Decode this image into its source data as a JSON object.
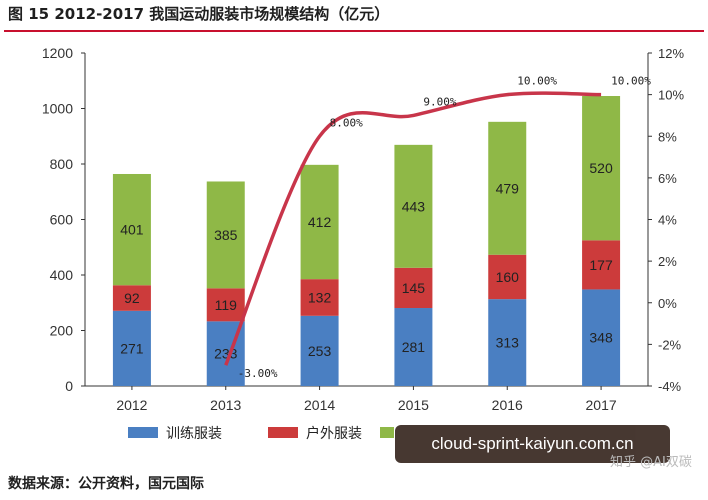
{
  "title": "图 15   2012-2017 我国运动服装市场规模结构（亿元）",
  "source": "数据来源：公开资料，国元国际",
  "watermark": "cloud-sprint-kaiyun.com.cn",
  "watermark_corner": "知乎 @AI双碳",
  "colors": {
    "training": "#4a7fc2",
    "outdoor": "#cc3b3b",
    "third": "#8fb847",
    "line": "#c8354a"
  },
  "chart_data": {
    "type": "bar",
    "stacked": true,
    "categories": [
      "2012",
      "2013",
      "2014",
      "2015",
      "2016",
      "2017"
    ],
    "series": [
      {
        "name": "训练服装",
        "values": [
          271,
          233,
          253,
          281,
          313,
          348
        ]
      },
      {
        "name": "户外服装",
        "values": [
          92,
          119,
          132,
          145,
          160,
          177
        ]
      },
      {
        "name": "",
        "values": [
          401,
          385,
          412,
          443,
          479,
          520
        ]
      }
    ],
    "line_series": {
      "name": "",
      "axis": "right",
      "values": [
        null,
        -3,
        8,
        9,
        10,
        10
      ],
      "labels": [
        "",
        "-3.00%",
        "8.00%",
        "9.00%",
        "10.00%",
        "10.00%"
      ]
    },
    "ylim": [
      0,
      1200
    ],
    "y_ticks": [
      "0",
      "200",
      "400",
      "600",
      "800",
      "1000",
      "1200"
    ],
    "y2lim": [
      -4,
      12
    ],
    "y2_ticks": [
      "-4%",
      "-2%",
      "0%",
      "2%",
      "4%",
      "6%",
      "8%",
      "10%",
      "12%"
    ],
    "legend_position": "bottom",
    "grid": false
  }
}
